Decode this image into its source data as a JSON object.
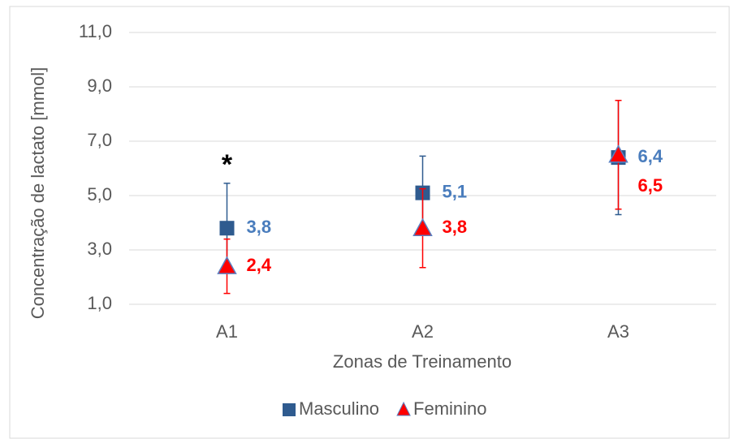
{
  "chart_data": {
    "type": "errorbar",
    "x_label": "Zonas de Treinamento",
    "y_label": "Concentração de lactato [mmol]",
    "categories": [
      "A1",
      "A2",
      "A3"
    ],
    "series": [
      {
        "name": "Masculino",
        "color": "#2f5b8f",
        "label_color": "#4a7dbd",
        "marker": "square",
        "values": [
          3.8,
          5.1,
          6.4
        ],
        "value_labels": [
          "3,8",
          "5,1",
          "6,4"
        ],
        "errors": [
          1.65,
          1.35,
          2.1
        ]
      },
      {
        "name": "Feminino",
        "color": "#ff0000",
        "label_color": "#ff0000",
        "marker": "triangle",
        "values": [
          2.4,
          3.8,
          6.5
        ],
        "value_labels": [
          "2,4",
          "3,8",
          "6,5"
        ],
        "errors": [
          1.0,
          1.45,
          2.0
        ]
      }
    ],
    "annotation": {
      "text": "*",
      "category": 0
    },
    "ylim": [
      1,
      11
    ],
    "yticks": [
      {
        "value": 1,
        "label": "1,0"
      },
      {
        "value": 3,
        "label": "3,0"
      },
      {
        "value": 5,
        "label": "5,0"
      },
      {
        "value": 7,
        "label": "7,0"
      },
      {
        "value": 9,
        "label": "9,0"
      },
      {
        "value": 11,
        "label": "11,0"
      }
    ],
    "grid": true,
    "legend": "bottom"
  }
}
